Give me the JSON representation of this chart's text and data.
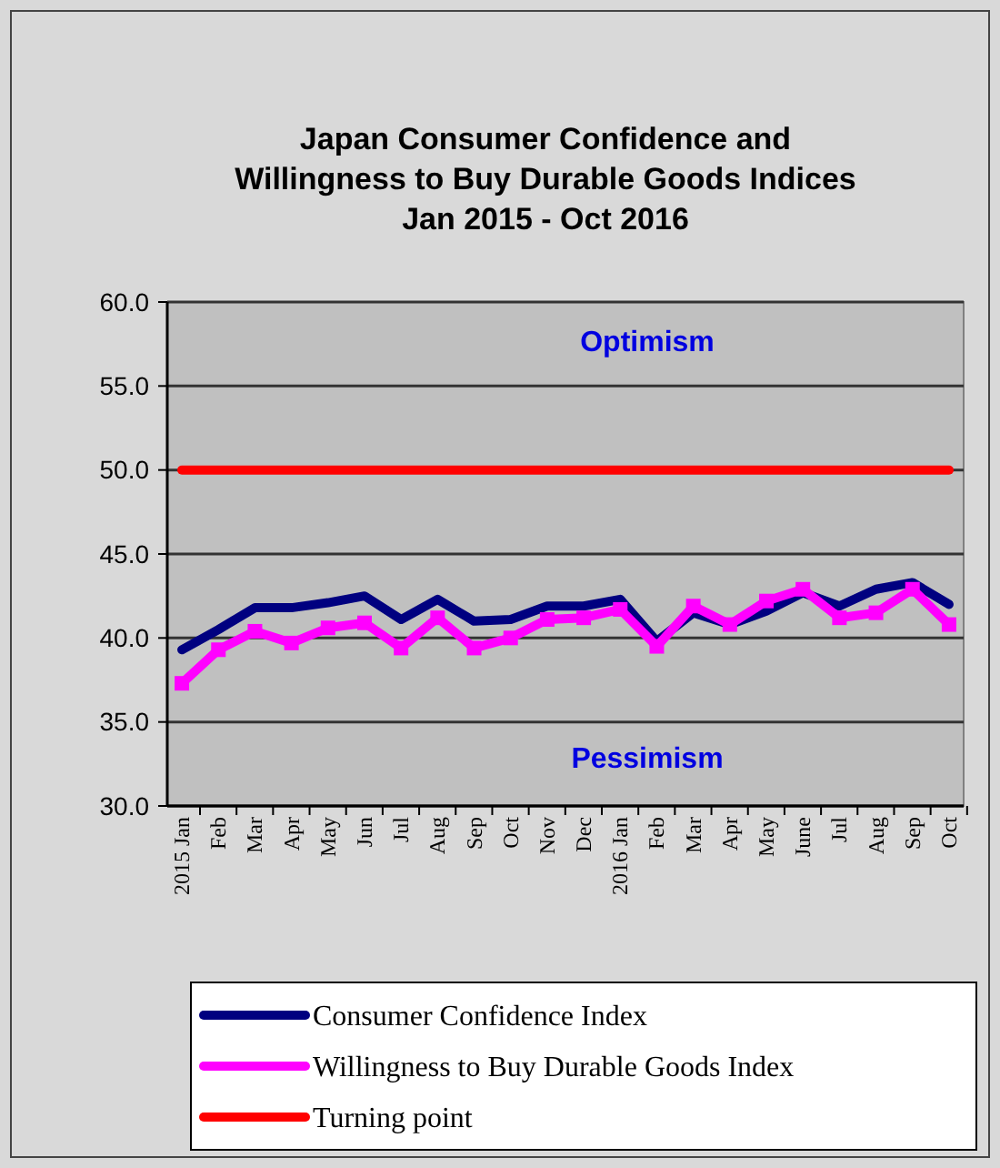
{
  "chart_data": {
    "type": "line",
    "title": "Japan Consumer Confidence and\nWillingness to Buy Durable Goods Indices\nJan 2015 - Oct 2016",
    "categories": [
      "2015 Jan",
      "Feb",
      "Mar",
      "Apr",
      "May",
      "Jun",
      "Jul",
      "Aug",
      "Sep",
      "Oct",
      "Nov",
      "Dec",
      "2016 Jan",
      "Feb",
      "Mar",
      "Apr",
      "May",
      "June",
      "Jul",
      "Aug",
      "Sep",
      "Oct"
    ],
    "series": [
      {
        "name": "Consumer Confidence Index",
        "color": "#000080",
        "marker": "none",
        "values": [
          39.3,
          40.5,
          41.8,
          41.8,
          42.1,
          42.5,
          41.1,
          42.3,
          41.0,
          41.1,
          41.9,
          41.9,
          42.3,
          39.8,
          41.5,
          40.8,
          41.6,
          42.7,
          41.9,
          42.9,
          43.3,
          42.0
        ]
      },
      {
        "name": "Willingness to Buy Durable Goods Index",
        "color": "#ff00ff",
        "marker": "square",
        "values": [
          37.3,
          39.3,
          40.4,
          39.7,
          40.6,
          40.9,
          39.4,
          41.2,
          39.4,
          40.0,
          41.1,
          41.2,
          41.7,
          39.5,
          41.9,
          40.8,
          42.2,
          42.9,
          41.2,
          41.5,
          42.9,
          40.8
        ]
      }
    ],
    "ylim": [
      30,
      60
    ],
    "yticks": [
      {
        "value": 30,
        "label": "30.0"
      },
      {
        "value": 35,
        "label": "35.0"
      },
      {
        "value": 40,
        "label": "40.0"
      },
      {
        "value": 45,
        "label": "45.0"
      },
      {
        "value": 50,
        "label": "50.0"
      },
      {
        "value": 55,
        "label": "55.0"
      },
      {
        "value": 60,
        "label": "60.0"
      }
    ],
    "ref_lines": [
      {
        "axis": "y",
        "value": 50,
        "label": "Turning point",
        "color": "#ff0000"
      }
    ],
    "annotations": [
      "Optimism",
      "Pessimism"
    ],
    "grid": "y",
    "legend": "bottom",
    "line_style": "solid"
  }
}
